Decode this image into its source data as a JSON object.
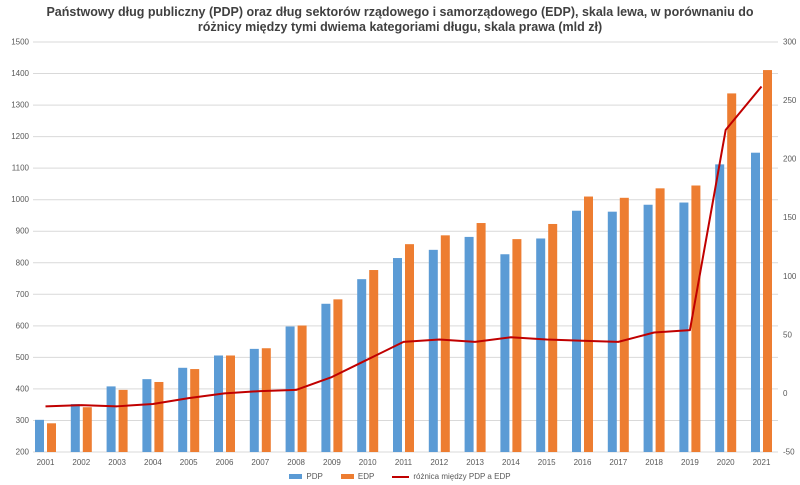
{
  "title": {
    "line1": "Państwowy dług publiczny (PDP) oraz dług sektorów rządowego i samorządowego (EDP), skala lewa, w porównaniu do",
    "line2": "różnicy między tymi dwiema kategoriami długu, skala prawa (mld zł)"
  },
  "colors": {
    "pdp": "#5B9BD5",
    "edp": "#ED7D31",
    "diff_line": "#C00000",
    "gridline": "#D9D9D9",
    "axis_text": "#595959",
    "title_text": "#404040"
  },
  "chart_data": {
    "type": "bar",
    "title": "Państwowy dług publiczny (PDP) oraz dług sektorów rządowego i samorządowego (EDP), skala lewa, w porównaniu do różnicy między tymi dwiema kategoriami długu, skala prawa (mld zł)",
    "categories": [
      "2001",
      "2002",
      "2003",
      "2004",
      "2005",
      "2006",
      "2007",
      "2008",
      "2009",
      "2010",
      "2011",
      "2012",
      "2013",
      "2014",
      "2015",
      "2016",
      "2017",
      "2018",
      "2019",
      "2020",
      "2021"
    ],
    "series": [
      {
        "name": "PDP",
        "type": "bar",
        "axis": "left",
        "color": "#5B9BD5",
        "values": [
          302,
          352,
          408,
          431,
          467,
          506,
          527,
          598,
          670,
          748,
          815,
          841,
          882,
          827,
          877,
          965,
          962,
          984,
          991,
          1112,
          1149
        ]
      },
      {
        "name": "EDP",
        "type": "bar",
        "axis": "left",
        "color": "#ED7D31",
        "values": [
          291,
          342,
          397,
          422,
          463,
          506,
          529,
          601,
          684,
          777,
          859,
          887,
          926,
          875,
          923,
          1010,
          1006,
          1036,
          1045,
          1337,
          1411
        ]
      },
      {
        "name": "różnica między PDP a EDP",
        "type": "line",
        "axis": "right",
        "color": "#C00000",
        "values": [
          -11,
          -10,
          -11,
          -9,
          -4,
          0,
          2,
          3,
          14,
          29,
          44,
          46,
          44,
          48,
          46,
          45,
          44,
          52,
          54,
          225,
          262
        ]
      }
    ],
    "left_axis": {
      "min": 200,
      "max": 1500,
      "step": 100,
      "ticks": [
        "200",
        "300",
        "400",
        "500",
        "600",
        "700",
        "800",
        "900",
        "1000",
        "1100",
        "1200",
        "1300",
        "1400",
        "1500"
      ]
    },
    "right_axis": {
      "min": -50,
      "max": 300,
      "step": 50,
      "ticks": [
        "-50",
        "0",
        "50",
        "100",
        "150",
        "200",
        "250",
        "300"
      ]
    },
    "grid": true,
    "legend_position": "bottom"
  }
}
